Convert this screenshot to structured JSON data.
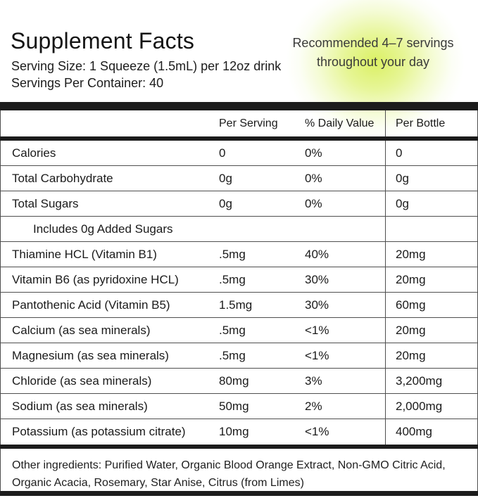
{
  "header": {
    "title": "Supplement Facts",
    "serving_size": "Serving Size: 1 Squeeze (1.5mL) per 12oz drink",
    "servings_per_container": "Servings Per Container: 40",
    "badge": {
      "line1": "Recommended 4–7 servings",
      "line2": "throughout your day"
    }
  },
  "table": {
    "columns": [
      "",
      "Per Serving",
      "% Daily Value",
      "Per Bottle"
    ],
    "rows": [
      {
        "name": "Calories",
        "per_serving": "0",
        "daily_value": "0%",
        "per_bottle": "0",
        "indent": false
      },
      {
        "name": "Total Carbohydrate",
        "per_serving": "0g",
        "daily_value": "0%",
        "per_bottle": "0g",
        "indent": false
      },
      {
        "name": "Total Sugars",
        "per_serving": "0g",
        "daily_value": "0%",
        "per_bottle": "0g",
        "indent": false
      },
      {
        "name": "Includes 0g Added Sugars",
        "per_serving": "",
        "daily_value": "",
        "per_bottle": "",
        "indent": true
      },
      {
        "name": "Thiamine HCL (Vitamin B1)",
        "per_serving": ".5mg",
        "daily_value": "40%",
        "per_bottle": "20mg",
        "indent": false
      },
      {
        "name": "Vitamin B6 (as pyridoxine HCL)",
        "per_serving": ".5mg",
        "daily_value": "30%",
        "per_bottle": "20mg",
        "indent": false
      },
      {
        "name": "Pantothenic Acid (Vitamin B5)",
        "per_serving": "1.5mg",
        "daily_value": "30%",
        "per_bottle": "60mg",
        "indent": false
      },
      {
        "name": "Calcium (as sea minerals)",
        "per_serving": ".5mg",
        "daily_value": "<1%",
        "per_bottle": "20mg",
        "indent": false
      },
      {
        "name": "Magnesium (as sea minerals)",
        "per_serving": ".5mg",
        "daily_value": "<1%",
        "per_bottle": "20mg",
        "indent": false
      },
      {
        "name": "Chloride (as sea minerals)",
        "per_serving": "80mg",
        "daily_value": "3%",
        "per_bottle": "3,200mg",
        "indent": false
      },
      {
        "name": "Sodium (as sea minerals)",
        "per_serving": "50mg",
        "daily_value": "2%",
        "per_bottle": "2,000mg",
        "indent": false
      },
      {
        "name": "Potassium (as potassium citrate)",
        "per_serving": "10mg",
        "daily_value": "<1%",
        "per_bottle": "400mg",
        "indent": false
      }
    ]
  },
  "footer": {
    "other_ingredients": "Other ingredients: Purified Water, Organic Blood Orange Extract, Non-GMO Citric Acid, Organic Acacia, Rosemary, Star Anise, Citrus (from Limes)"
  },
  "colors": {
    "bar": "#1c1c1c",
    "row_line": "#4f4f4f",
    "glow_center": "#d9ef5c",
    "badge_text": "#3a3a3a"
  }
}
